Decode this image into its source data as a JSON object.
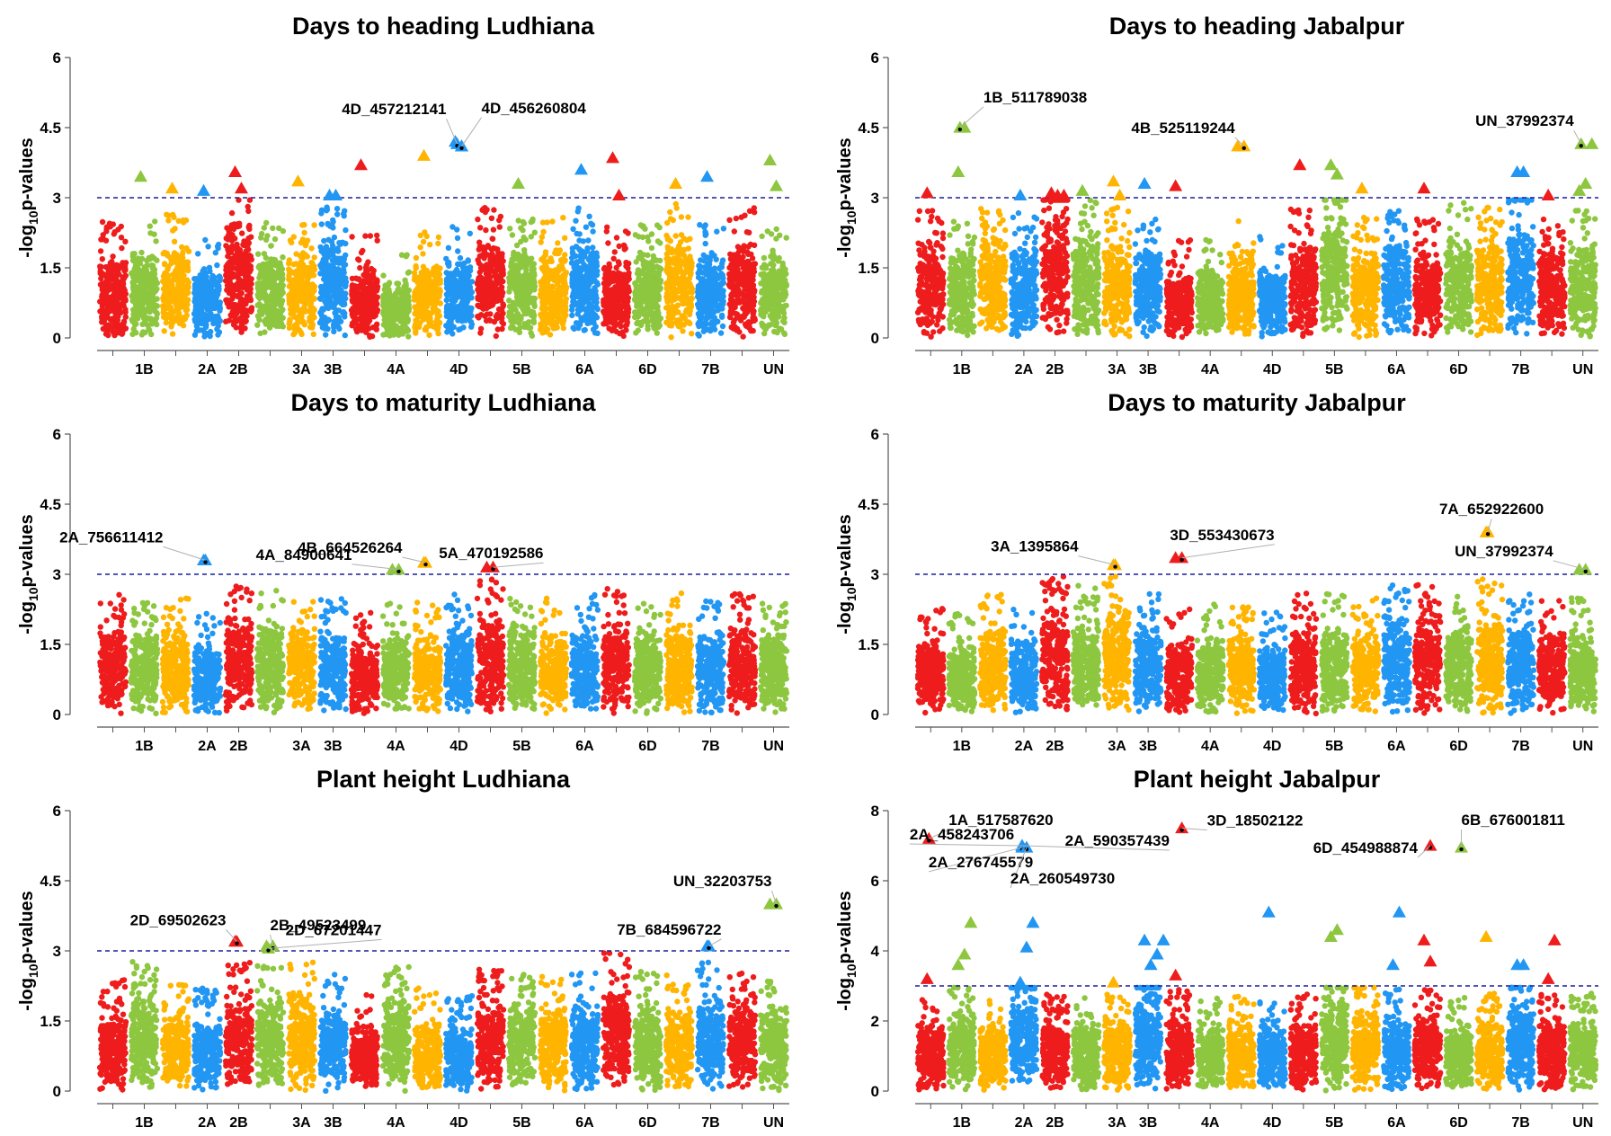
{
  "figure": {
    "colors": {
      "palette": [
        "#ee1c1c",
        "#8dc63f",
        "#ffb400",
        "#2196f3"
      ],
      "threshold": "#1c1c9c",
      "leader": "#b0b0b0"
    },
    "chromosomes": [
      "1A",
      "1B",
      "1D",
      "2A",
      "2B",
      "2D",
      "3A",
      "3B",
      "3D",
      "4A",
      "4B",
      "4D",
      "5A",
      "5B",
      "5D",
      "6A",
      "6B",
      "6D",
      "7A",
      "7B",
      "7D",
      "UN"
    ],
    "chromosome_labels_shown": [
      "1B",
      "2A",
      "2B",
      "3A",
      "3B",
      "4A",
      "4D",
      "5B",
      "6A",
      "6D",
      "7B",
      "UN"
    ]
  },
  "chart_data": [
    {
      "id": "dth_ludhiana",
      "type": "scatter",
      "title": "Days to heading Ludhiana",
      "ylabel": "-log10p-values",
      "ylabel_main": "-log",
      "ylabel_sub": "10",
      "ylabel_end": "p-values",
      "xlabel": "",
      "ylim": [
        0,
        6
      ],
      "yticks": [
        "0",
        "1.5",
        "3",
        "4.5",
        "6"
      ],
      "threshold": 3,
      "bg_level": [
        1.9,
        1.9,
        2.1,
        1.6,
        2.6,
        1.9,
        1.9,
        2.3,
        1.6,
        1.2,
        1.7,
        1.8,
        2.2,
        2.0,
        2.0,
        2.2,
        1.8,
        1.9,
        2.3,
        1.9,
        2.2,
        1.8
      ],
      "sig": [
        {
          "chr": "1B",
          "v": 3.45
        },
        {
          "chr": "1D",
          "v": 3.2
        },
        {
          "chr": "2A",
          "v": 3.15
        },
        {
          "chr": "2B",
          "v": 3.55
        },
        {
          "chr": "2B",
          "v": 3.2
        },
        {
          "chr": "3A",
          "v": 3.35
        },
        {
          "chr": "3B",
          "v": 3.05
        },
        {
          "chr": "3B",
          "v": 3.05
        },
        {
          "chr": "3D",
          "v": 3.7
        },
        {
          "chr": "4B",
          "v": 3.9
        },
        {
          "chr": "4D",
          "v": 4.2
        },
        {
          "chr": "4D",
          "v": 4.1
        },
        {
          "chr": "5B",
          "v": 3.3
        },
        {
          "chr": "6A",
          "v": 3.6
        },
        {
          "chr": "6B",
          "v": 3.85
        },
        {
          "chr": "6B",
          "v": 3.05
        },
        {
          "chr": "7A",
          "v": 3.3
        },
        {
          "chr": "7B",
          "v": 3.45
        },
        {
          "chr": "UN",
          "v": 3.8
        },
        {
          "chr": "UN",
          "v": 3.25
        }
      ],
      "labels": [
        {
          "text": "4D_457212141",
          "chr": "4D",
          "v": 4.15,
          "dir": "left"
        },
        {
          "text": "4D_456260804",
          "chr": "4D",
          "v": 4.1,
          "dir": "right"
        }
      ]
    },
    {
      "id": "dth_jabalpur",
      "type": "scatter",
      "title": "Days to heading Jabalpur",
      "ylabel": "-log10p-values",
      "ylabel_main": "-log",
      "ylabel_sub": "10",
      "ylabel_end": "p-values",
      "xlabel": "",
      "ylim": [
        0,
        6
      ],
      "yticks": [
        "0",
        "1.5",
        "3",
        "4.5",
        "6"
      ],
      "threshold": 3,
      "bg_level": [
        2.2,
        2.0,
        2.2,
        2.1,
        3.0,
        2.4,
        2.2,
        2.0,
        1.5,
        1.6,
        1.9,
        1.6,
        2.2,
        2.8,
        2.0,
        2.2,
        2.0,
        2.3,
        2.2,
        2.6,
        2.1,
        2.2
      ],
      "sig": [
        {
          "chr": "1A",
          "v": 3.1
        },
        {
          "chr": "1B",
          "v": 3.55
        },
        {
          "chr": "1B",
          "v": 4.5
        },
        {
          "chr": "2A",
          "v": 3.05
        },
        {
          "chr": "2B",
          "v": 3.1
        },
        {
          "chr": "2B",
          "v": 3.05
        },
        {
          "chr": "2B",
          "v": 3.05
        },
        {
          "chr": "2D",
          "v": 3.15
        },
        {
          "chr": "3A",
          "v": 3.35
        },
        {
          "chr": "3A",
          "v": 3.05
        },
        {
          "chr": "3B",
          "v": 3.3
        },
        {
          "chr": "3D",
          "v": 3.25
        },
        {
          "chr": "4B",
          "v": 4.1
        },
        {
          "chr": "5A",
          "v": 3.7
        },
        {
          "chr": "5B",
          "v": 3.7
        },
        {
          "chr": "5B",
          "v": 3.5
        },
        {
          "chr": "5D",
          "v": 3.2
        },
        {
          "chr": "6B",
          "v": 3.2
        },
        {
          "chr": "7B",
          "v": 3.55
        },
        {
          "chr": "7B",
          "v": 3.55
        },
        {
          "chr": "7D",
          "v": 3.05
        },
        {
          "chr": "UN",
          "v": 3.15
        },
        {
          "chr": "UN",
          "v": 3.3
        },
        {
          "chr": "UN",
          "v": 4.15
        }
      ],
      "labels": [
        {
          "text": "1B_511789038",
          "chr": "1B",
          "v": 4.5,
          "dir": "right"
        },
        {
          "text": "4B_525119244",
          "chr": "4B",
          "v": 4.1,
          "dir": "left"
        },
        {
          "text": "UN_37992374",
          "chr": "UN",
          "v": 4.15,
          "dir": "left"
        }
      ]
    },
    {
      "id": "dtm_ludhiana",
      "type": "scatter",
      "title": "Days to maturity Ludhiana",
      "ylabel": "-log10p-values",
      "ylabel_main": "-log",
      "ylabel_sub": "10",
      "ylabel_end": "p-values",
      "xlabel": "",
      "ylim": [
        0,
        6
      ],
      "yticks": [
        "0",
        "1.5",
        "3",
        "4.5",
        "6"
      ],
      "threshold": 3,
      "bg_level": [
        2.0,
        1.8,
        1.9,
        1.6,
        2.3,
        2.1,
        2.0,
        1.9,
        1.6,
        1.8,
        1.8,
        2.0,
        2.3,
        2.1,
        1.9,
        2.0,
        2.1,
        1.9,
        2.0,
        1.9,
        2.0,
        1.8
      ],
      "sig": [
        {
          "chr": "2A",
          "v": 3.3
        },
        {
          "chr": "4A",
          "v": 3.1
        },
        {
          "chr": "4B",
          "v": 3.25
        },
        {
          "chr": "5A",
          "v": 3.15
        }
      ],
      "labels": [
        {
          "text": "2A_756611412",
          "chr": "2A",
          "v": 3.3,
          "dir": "left"
        },
        {
          "text": "4A_84900641",
          "chr": "4A",
          "v": 3.1,
          "dir": "left"
        },
        {
          "text": "4B_664526264",
          "chr": "4B",
          "v": 3.25,
          "dir": "left"
        },
        {
          "text": "5A_470192586",
          "chr": "5A",
          "v": 3.15,
          "dir": "left"
        }
      ]
    },
    {
      "id": "dtm_jabalpur",
      "type": "scatter",
      "title": "Days to maturity Jabalpur",
      "ylabel": "-log10p-values",
      "ylabel_main": "-log",
      "ylabel_sub": "10",
      "ylabel_end": "p-values",
      "xlabel": "",
      "ylim": [
        0,
        6
      ],
      "yticks": [
        "0",
        "1.5",
        "3",
        "4.5",
        "6"
      ],
      "threshold": 3,
      "bg_level": [
        1.7,
        1.6,
        2.0,
        1.7,
        2.4,
        2.2,
        2.4,
        2.0,
        1.7,
        1.8,
        1.8,
        1.6,
        2.0,
        2.0,
        1.9,
        2.2,
        2.3,
        2.0,
        2.3,
        2.1,
        2.0,
        1.9
      ],
      "sig": [
        {
          "chr": "3A",
          "v": 3.2
        },
        {
          "chr": "3D",
          "v": 3.35
        },
        {
          "chr": "7A",
          "v": 3.9
        },
        {
          "chr": "UN",
          "v": 3.1
        }
      ],
      "labels": [
        {
          "text": "3A_1395864",
          "chr": "3A",
          "v": 3.2,
          "dir": "left"
        },
        {
          "text": "3D_553430673",
          "chr": "3D",
          "v": 3.35,
          "dir": "left"
        },
        {
          "text": "7A_652922600",
          "chr": "7A",
          "v": 3.9,
          "dir": "right"
        },
        {
          "text": "UN_37992374",
          "chr": "UN",
          "v": 3.1,
          "dir": "left"
        }
      ]
    },
    {
      "id": "ph_ludhiana",
      "type": "scatter",
      "title": "Plant height Ludhiana",
      "ylabel": "-log10p-values",
      "ylabel_main": "-log",
      "ylabel_sub": "10",
      "ylabel_end": "p-values",
      "xlabel": "",
      "ylim": [
        0,
        6
      ],
      "yticks": [
        "0",
        "1.5",
        "3",
        "4.5",
        "6"
      ],
      "threshold": 3,
      "bg_level": [
        1.8,
        2.2,
        1.7,
        1.6,
        2.2,
        2.1,
        2.2,
        2.0,
        1.5,
        2.1,
        1.6,
        1.5,
        2.0,
        2.0,
        1.9,
        2.0,
        2.4,
        2.0,
        1.9,
        2.2,
        2.0,
        1.9
      ],
      "sig": [
        {
          "chr": "2B",
          "v": 3.2
        },
        {
          "chr": "2D",
          "v": 3.1
        },
        {
          "chr": "7B",
          "v": 3.1
        },
        {
          "chr": "UN",
          "v": 4.0
        }
      ],
      "labels": [
        {
          "text": "2D_69502623",
          "chr": "2B",
          "v": 3.2,
          "dir": "left"
        },
        {
          "text": "2B_49523499",
          "chr": "2D",
          "v": 3.1,
          "dir": "right"
        },
        {
          "text": "2D_67201447",
          "chr": "2D",
          "v": 3.05,
          "dir": "right"
        },
        {
          "text": "UN_32203753",
          "chr": "UN",
          "v": 4.0,
          "dir": "left"
        },
        {
          "text": "7B_684596722",
          "chr": "7B",
          "v": 3.1,
          "dir": "right"
        }
      ]
    },
    {
      "id": "ph_jabalpur",
      "type": "scatter",
      "title": "Plant height Jabalpur",
      "ylabel": "-log10p-values",
      "ylabel_main": "-log",
      "ylabel_sub": "10",
      "ylabel_end": "p-values",
      "xlabel": "",
      "ylim": [
        0,
        8
      ],
      "yticks": [
        "0",
        "2",
        "4",
        "6",
        "8"
      ],
      "threshold": 3,
      "bg_level": [
        2.0,
        2.4,
        2.0,
        2.8,
        2.2,
        2.1,
        2.2,
        3.0,
        2.3,
        2.1,
        2.1,
        2.0,
        2.2,
        2.8,
        2.4,
        2.3,
        2.3,
        2.1,
        2.2,
        2.7,
        2.2,
        2.2
      ],
      "sig": [
        {
          "chr": "1A",
          "v": 3.2
        },
        {
          "chr": "1B",
          "v": 3.6
        },
        {
          "chr": "1B",
          "v": 3.9
        },
        {
          "chr": "1B",
          "v": 4.8
        },
        {
          "chr": "2A",
          "v": 3.1
        },
        {
          "chr": "2A",
          "v": 4.1
        },
        {
          "chr": "2A",
          "v": 4.8
        },
        {
          "chr": "3A",
          "v": 3.1
        },
        {
          "chr": "3B",
          "v": 4.3
        },
        {
          "chr": "3B",
          "v": 3.6
        },
        {
          "chr": "3B",
          "v": 3.9
        },
        {
          "chr": "3B",
          "v": 4.3
        },
        {
          "chr": "3D",
          "v": 3.3
        },
        {
          "chr": "4D",
          "v": 5.1
        },
        {
          "chr": "5B",
          "v": 4.4
        },
        {
          "chr": "5B",
          "v": 4.6
        },
        {
          "chr": "6A",
          "v": 3.6
        },
        {
          "chr": "6A",
          "v": 5.1
        },
        {
          "chr": "6B",
          "v": 4.3
        },
        {
          "chr": "6B",
          "v": 3.7
        },
        {
          "chr": "7A",
          "v": 4.4
        },
        {
          "chr": "7B",
          "v": 3.6
        },
        {
          "chr": "7B",
          "v": 3.6
        },
        {
          "chr": "7D",
          "v": 3.2
        },
        {
          "chr": "7D",
          "v": 4.3
        }
      ],
      "labels": [
        {
          "text": "1A_517587620",
          "chr": "1A",
          "v": 7.2,
          "dir": "right"
        },
        {
          "text": "3D_18502122",
          "chr": "3D",
          "v": 7.5,
          "dir": "right"
        },
        {
          "text": "2A_458243706",
          "chr": "2A",
          "v": 7.0,
          "dir": "right"
        },
        {
          "text": "6B_676001811",
          "chr": "6D",
          "v": 6.95,
          "dir": "right"
        },
        {
          "text": "2A_590357439",
          "chr": "2A",
          "v": 7.0,
          "dir": "right"
        },
        {
          "text": "6D_454988874",
          "chr": "6B",
          "v": 7.0,
          "dir": "right"
        },
        {
          "text": "2A_276745579",
          "chr": "2A",
          "v": 6.95,
          "dir": "left"
        },
        {
          "text": "2A_260549730",
          "chr": "2A",
          "v": 6.95,
          "dir": "right"
        }
      ]
    }
  ]
}
